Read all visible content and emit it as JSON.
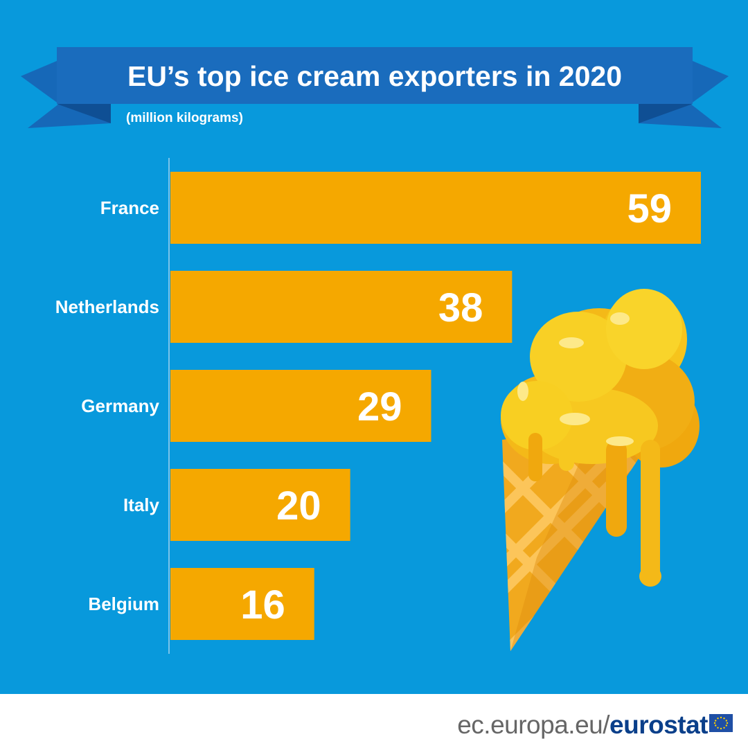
{
  "header": {
    "title": "EU’s top ice cream exporters in 2020",
    "subtitle": "(million kilograms)"
  },
  "chart_data": {
    "type": "bar",
    "orientation": "horizontal",
    "title": "EU’s top ice cream exporters in 2020",
    "subtitle": "(million kilograms)",
    "categories": [
      "France",
      "Netherlands",
      "Germany",
      "Italy",
      "Belgium"
    ],
    "values": [
      59,
      38,
      29,
      20,
      16
    ],
    "xlim": [
      0,
      59
    ],
    "grid": false,
    "legend": "none"
  },
  "colors": {
    "background": "#0899dc",
    "banner": "#1668b8",
    "banner_dark": "#0f4f94",
    "bar": "#f5a800",
    "text": "#ffffff"
  },
  "illustration": {
    "icon": "ice-cream-cone-icon"
  },
  "footer": {
    "domain": "ec.europa.eu/",
    "brand": "eurostat",
    "flag_icon": "eu-flag-icon"
  }
}
